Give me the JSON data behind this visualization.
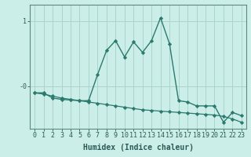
{
  "xlabel": "Humidex (Indice chaleur)",
  "background_color": "#cceee8",
  "grid_color": "#aad4ce",
  "line_color": "#2a7a6e",
  "x_ticks": [
    0,
    1,
    2,
    3,
    4,
    5,
    6,
    7,
    8,
    9,
    10,
    11,
    12,
    13,
    14,
    15,
    16,
    17,
    18,
    19,
    20,
    21,
    22,
    23
  ],
  "ylim": [
    -0.65,
    1.25
  ],
  "xlim": [
    -0.5,
    23.5
  ],
  "series1_x": [
    0,
    1,
    2,
    3,
    4,
    5,
    6,
    7,
    8,
    9,
    10,
    11,
    12,
    13,
    14,
    15,
    16,
    17,
    18,
    19,
    20,
    21,
    22,
    23
  ],
  "series1_y": [
    -0.1,
    -0.1,
    -0.18,
    -0.2,
    -0.21,
    -0.22,
    -0.22,
    0.18,
    0.55,
    0.7,
    0.45,
    0.68,
    0.52,
    0.7,
    1.05,
    0.65,
    -0.22,
    -0.24,
    -0.3,
    -0.3,
    -0.3,
    -0.55,
    -0.4,
    -0.45
  ],
  "series2_x": [
    0,
    1,
    2,
    3,
    4,
    5,
    6,
    7,
    8,
    9,
    10,
    11,
    12,
    13,
    14,
    15,
    16,
    17,
    18,
    19,
    20,
    21,
    22,
    23
  ],
  "series2_y": [
    -0.1,
    -0.12,
    -0.15,
    -0.18,
    -0.2,
    -0.22,
    -0.24,
    -0.26,
    -0.28,
    -0.3,
    -0.32,
    -0.34,
    -0.36,
    -0.37,
    -0.38,
    -0.39,
    -0.4,
    -0.41,
    -0.42,
    -0.43,
    -0.44,
    -0.46,
    -0.5,
    -0.55
  ],
  "ytick_positions": [
    1.0,
    0.0
  ],
  "ytick_labels": [
    "1",
    "-0"
  ]
}
